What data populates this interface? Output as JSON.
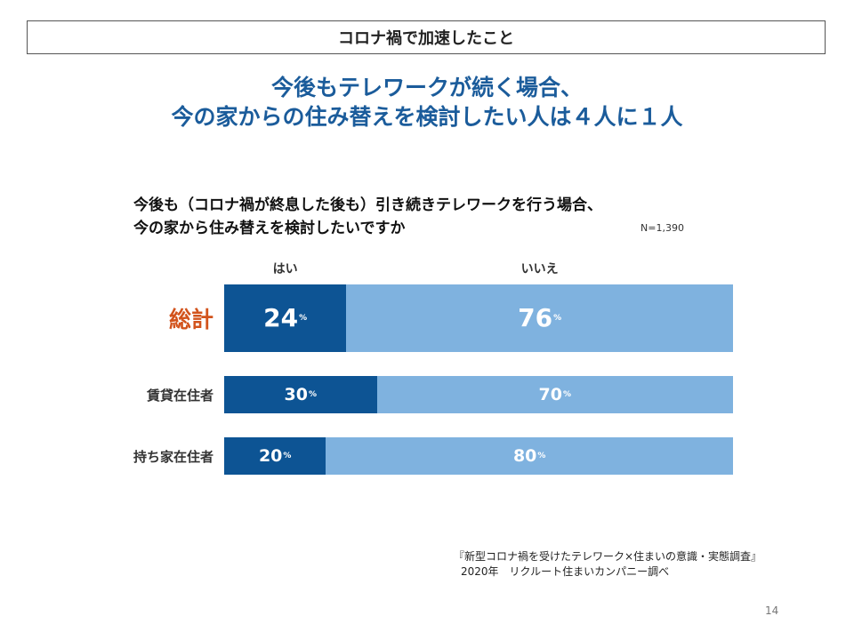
{
  "slide": {
    "header": "コロナ禍で加速したこと",
    "headline_line1": "今後もテレワークが続く場合、",
    "headline_line2": "今の家からの住み替えを検討したい人は４人に１人",
    "question_line1": "今後も（コロナ禍が終息した後も）引き続きテレワークを行う場合、",
    "question_line2": "今の家から住み替えを検討したいですか",
    "sample_size": "N=1,390",
    "source_line1": "『新型コロナ禍を受けたテレワーク×住まいの意識・実態調査』",
    "source_line2": "2020年　リクルート住まいカンパニー調べ",
    "page_number": "14"
  },
  "chart_data": {
    "type": "bar",
    "orientation": "horizontal",
    "stacked": true,
    "percent_symbol": "%",
    "categories": [
      "総計",
      "賃貸在住者",
      "持ち家在住者"
    ],
    "series": [
      {
        "name": "はい",
        "values": [
          24,
          30,
          20
        ],
        "color": "#0d5494"
      },
      {
        "name": "いいえ",
        "values": [
          76,
          70,
          80
        ],
        "color": "#7fb2df"
      }
    ],
    "xlim": [
      0,
      100
    ],
    "total_color": "#d2531c"
  }
}
